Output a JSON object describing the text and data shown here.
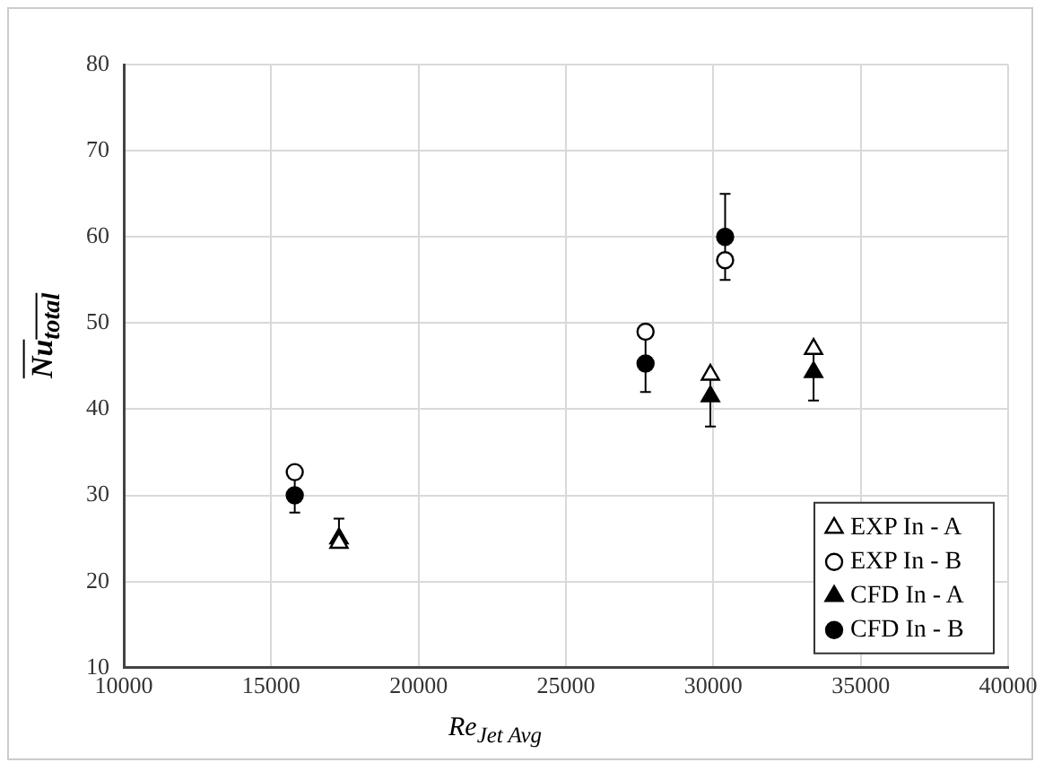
{
  "chart_data": {
    "type": "scatter",
    "xlabel": "Re$_{Jet Avg}$",
    "ylabel": "Nu$_{total}$",
    "xlim": [
      10000,
      40000
    ],
    "xticks": [
      10000,
      15000,
      20000,
      25000,
      30000,
      35000,
      40000
    ],
    "ylim": [
      10,
      80
    ],
    "yticks": [
      10,
      20,
      30,
      40,
      50,
      60,
      70,
      80
    ],
    "grid": true,
    "legend": "bottom right",
    "series": [
      {
        "name": "EXP In - A",
        "color": "#000000",
        "marker": "triangle",
        "x": [
          17300,
          29900,
          33400
        ],
        "values": [
          24.5,
          44,
          47
        ]
      },
      {
        "name": "EXP In - B",
        "color": "#000000",
        "marker": "circle",
        "x": [
          15800,
          27700,
          30400
        ],
        "values": [
          32.7,
          49,
          57.3
        ]
      },
      {
        "name": "CFD In - A",
        "color": "#000000",
        "marker": "triangle",
        "x": [
          17300,
          29900,
          33400
        ],
        "values": [
          25,
          41.5,
          44.3
        ],
        "errors": [
          [
            24,
            27.3
          ],
          [
            38,
            44
          ],
          [
            41,
            47
          ]
        ]
      },
      {
        "name": "CFD In - B",
        "color": "#000000",
        "marker": "circle",
        "x": [
          15800,
          27700,
          30400
        ],
        "values": [
          30,
          45.3,
          60
        ],
        "errors": [
          [
            28,
            32
          ],
          [
            42,
            48.5
          ],
          [
            55,
            65
          ]
        ]
      }
    ]
  }
}
